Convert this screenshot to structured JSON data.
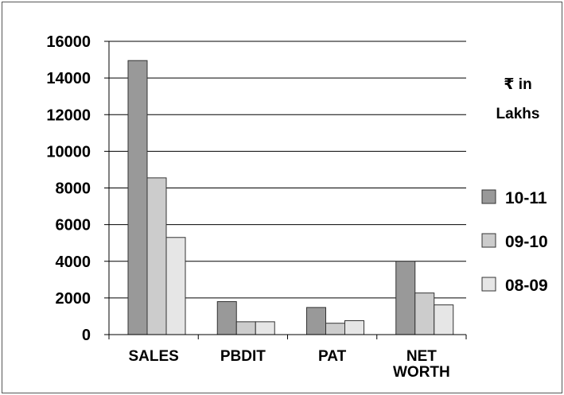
{
  "chart_data": {
    "type": "bar",
    "categories": [
      "SALES",
      "PBDIT",
      "PAT",
      "NET WORTH"
    ],
    "category_lines": [
      [
        "SALES"
      ],
      [
        "PBDIT"
      ],
      [
        "PAT"
      ],
      [
        "NET",
        "WORTH"
      ]
    ],
    "series": [
      {
        "name": "10-11",
        "color": "#999999",
        "values": [
          14950,
          1800,
          1480,
          4000
        ]
      },
      {
        "name": "09-10",
        "color": "#cccccc",
        "values": [
          8550,
          700,
          620,
          2270
        ]
      },
      {
        "name": "08-09",
        "color": "#e6e6e6",
        "values": [
          5300,
          700,
          760,
          1620
        ]
      }
    ],
    "ylim": [
      0,
      16000
    ],
    "yticks": [
      0,
      2000,
      4000,
      6000,
      8000,
      10000,
      12000,
      14000,
      16000
    ],
    "unit_lines": [
      "₹ in",
      "Lakhs"
    ],
    "grid": true,
    "legend_position": "right"
  }
}
